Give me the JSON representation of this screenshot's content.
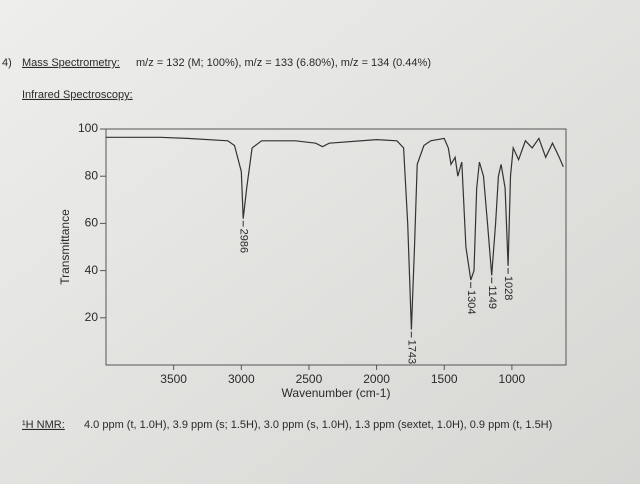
{
  "problem_number": "4)",
  "mass_spec": {
    "label": "Mass Spectrometry:",
    "text": "m/z = 132 (M; 100%), m/z = 133 (6.80%), m/z = 134 (0.44%)"
  },
  "ir_heading": "Infrared Spectroscopy:",
  "chart_data": {
    "type": "line",
    "x_label": "Wavenumber (cm-1)",
    "y_label": "Transmittance",
    "x": [
      4000,
      3600,
      3400,
      3100,
      3050,
      3000,
      2986,
      2960,
      2920,
      2850,
      2600,
      2450,
      2400,
      2350,
      2000,
      1850,
      1800,
      1770,
      1743,
      1720,
      1700,
      1650,
      1600,
      1500,
      1470,
      1450,
      1420,
      1400,
      1370,
      1340,
      1304,
      1280,
      1260,
      1240,
      1210,
      1180,
      1149,
      1120,
      1100,
      1080,
      1050,
      1028,
      1010,
      990,
      950,
      900,
      850,
      800,
      750,
      700,
      650,
      620
    ],
    "series": [
      {
        "color": "#333333",
        "values": [
          96.5,
          96.5,
          96,
          95,
          93,
          82,
          62,
          75,
          92,
          95,
          95,
          94,
          92.5,
          94,
          95.5,
          95,
          92,
          60,
          15,
          50,
          85,
          93,
          95,
          96,
          92,
          85,
          88,
          80,
          86,
          50,
          36,
          40,
          75,
          86,
          80,
          60,
          38,
          60,
          80,
          85,
          75,
          42,
          80,
          92,
          87,
          95,
          92,
          96,
          88,
          94,
          88,
          84
        ]
      }
    ],
    "xlim": [
      4000,
      600
    ],
    "ylim": [
      0,
      100
    ],
    "xticks": [
      3500,
      3000,
      2500,
      2000,
      1500,
      1000
    ],
    "yticks": [
      20,
      40,
      60,
      80,
      100
    ],
    "grid": false,
    "annotations": [
      {
        "text": "2986",
        "x": 2986,
        "y": 62
      },
      {
        "text": "1743",
        "x": 1743,
        "y": 15
      },
      {
        "text": "1304",
        "x": 1304,
        "y": 36
      },
      {
        "text": "1149",
        "x": 1149,
        "y": 38
      },
      {
        "text": "1028",
        "x": 1028,
        "y": 42
      }
    ]
  },
  "nmr": {
    "label": "¹H NMR:",
    "text": "4.0 ppm (t, 1.0H), 3.9 ppm (s; 1.5H), 3.0 ppm (s, 1.0H), 1.3 ppm  (sextet, 1.0H), 0.9 ppm (t, 1.5H)"
  }
}
